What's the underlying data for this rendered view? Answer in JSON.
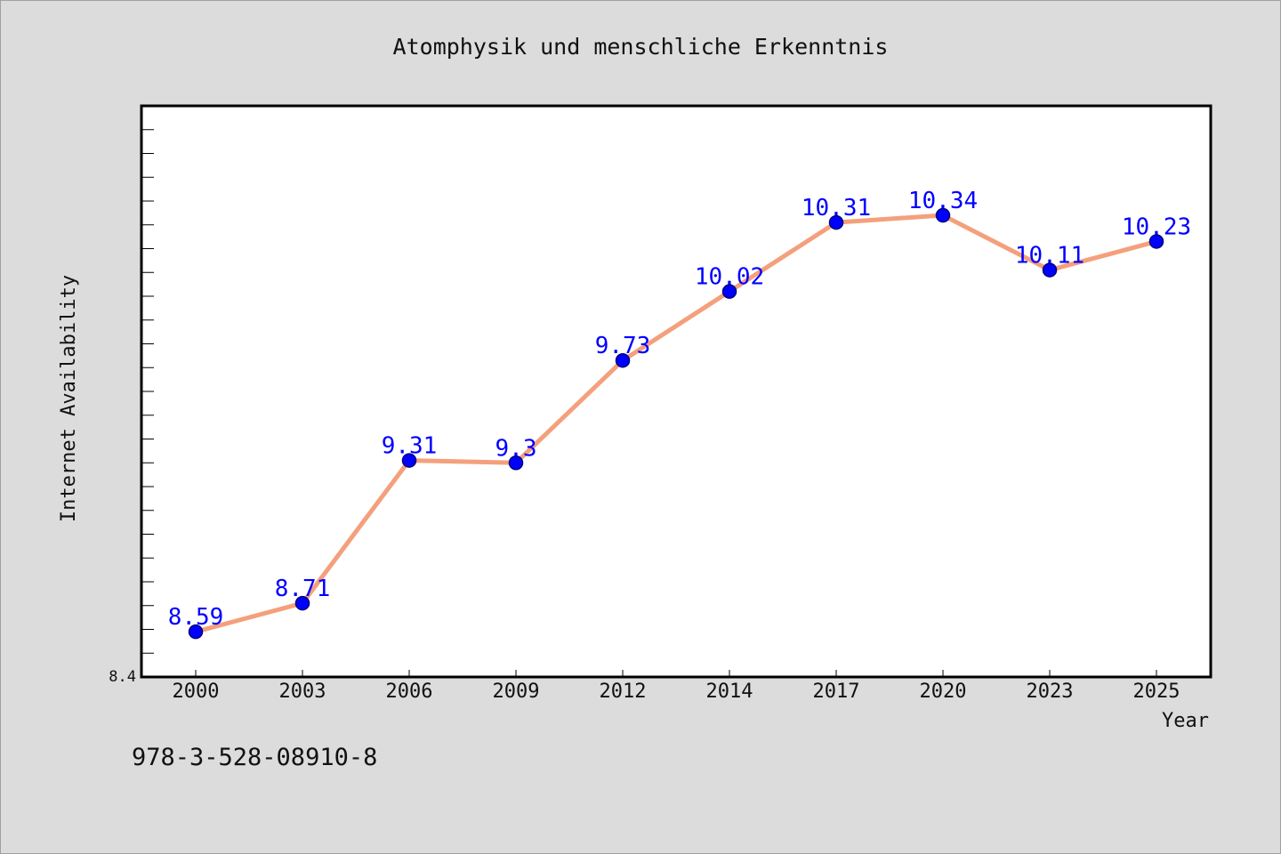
{
  "chart_data": {
    "type": "line",
    "title": "Atomphysik und menschliche Erkenntnis",
    "xlabel": "Year",
    "ylabel": "Internet Availability",
    "categories": [
      "2000",
      "2003",
      "2006",
      "2009",
      "2012",
      "2014",
      "2017",
      "2020",
      "2023",
      "2025"
    ],
    "series": [
      {
        "values": [
          8.59,
          8.71,
          9.31,
          9.3,
          9.73,
          10.02,
          10.31,
          10.34,
          10.11,
          10.23
        ],
        "labels": [
          "8.59",
          "8.71",
          "9.31",
          "9.3",
          "9.73",
          "10.02",
          "10.31",
          "10.34",
          "10.11",
          "10.23"
        ]
      }
    ],
    "ylim": [
      8.4,
      10.8
    ],
    "y_tick_labels": [
      "8.4"
    ],
    "grid": false,
    "line_color": "#f4a07c",
    "marker_color": "#0000ff",
    "label_color": "#0000ff"
  },
  "isbn": "978-3-528-08910-8"
}
